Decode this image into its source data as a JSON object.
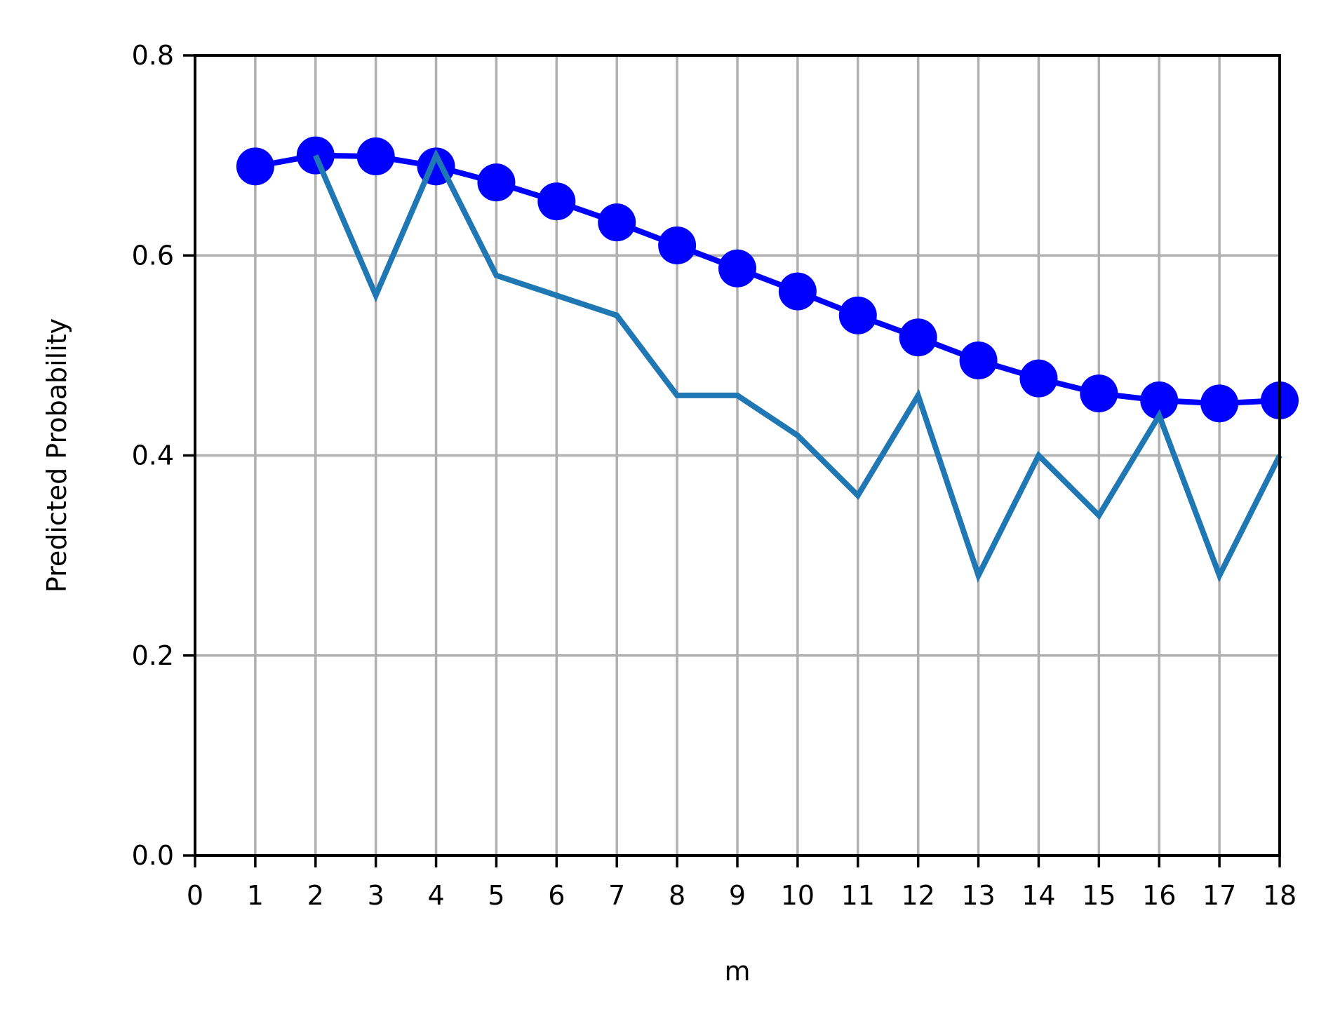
{
  "chart_data": {
    "type": "line",
    "xlabel": "m",
    "ylabel": "Predicted Probability",
    "xlim": [
      0,
      18
    ],
    "ylim": [
      0,
      0.8
    ],
    "x_ticks": [
      0,
      1,
      2,
      3,
      4,
      5,
      6,
      7,
      8,
      9,
      10,
      11,
      12,
      13,
      14,
      15,
      16,
      17,
      18
    ],
    "y_ticks": [
      0.0,
      0.2,
      0.4,
      0.6,
      0.8
    ],
    "y_tick_labels": [
      "0.0",
      "0.2",
      "0.4",
      "0.6",
      "0.8"
    ],
    "grid": true,
    "series": [
      {
        "color": "#0000ff",
        "marker": "circle",
        "x": [
          1,
          2,
          3,
          4,
          5,
          6,
          7,
          8,
          9,
          10,
          11,
          12,
          13,
          14,
          15,
          16,
          17,
          18
        ],
        "values": [
          0.689,
          0.7,
          0.699,
          0.689,
          0.673,
          0.654,
          0.633,
          0.61,
          0.587,
          0.564,
          0.54,
          0.518,
          0.495,
          0.477,
          0.462,
          0.455,
          0.452,
          0.455
        ]
      },
      {
        "color": "#1f77b4",
        "marker": "none",
        "x": [
          2,
          3,
          4,
          5,
          6,
          7,
          8,
          9,
          10,
          11,
          12,
          13,
          14,
          15,
          16,
          17,
          18
        ],
        "values": [
          0.7,
          0.56,
          0.7,
          0.58,
          0.56,
          0.54,
          0.46,
          0.46,
          0.42,
          0.36,
          0.46,
          0.28,
          0.4,
          0.34,
          0.44,
          0.28,
          0.4
        ]
      }
    ]
  }
}
